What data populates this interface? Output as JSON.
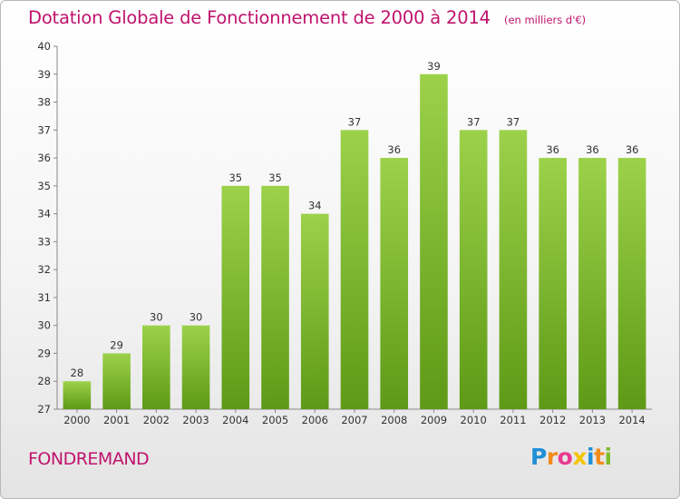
{
  "chart_data": {
    "type": "bar",
    "title": "Dotation Globale de Fonctionnement de 2000 à 2014",
    "unit_note": "(en milliers d'€)",
    "categories": [
      "2000",
      "2001",
      "2002",
      "2003",
      "2004",
      "2005",
      "2006",
      "2007",
      "2008",
      "2009",
      "2010",
      "2011",
      "2012",
      "2013",
      "2014"
    ],
    "values": [
      28,
      29,
      30,
      30,
      35,
      35,
      34,
      37,
      36,
      39,
      37,
      37,
      36,
      36,
      36
    ],
    "ylim": [
      27,
      40
    ],
    "yticks": [
      27,
      28,
      29,
      30,
      31,
      32,
      33,
      34,
      35,
      36,
      37,
      38,
      39,
      40
    ],
    "grid": false,
    "bar_color": "#7dbd2c"
  },
  "footer": {
    "commune": "FONDREMAND",
    "logo": {
      "letters": [
        "P",
        "r",
        "o",
        "x",
        "i",
        "t",
        "i"
      ],
      "colors": [
        "#1f8fd6",
        "#f28c1a",
        "#e93a8f",
        "#f5c400",
        "#1f8fd6",
        "#f28c1a",
        "#7dbd2c"
      ]
    }
  }
}
